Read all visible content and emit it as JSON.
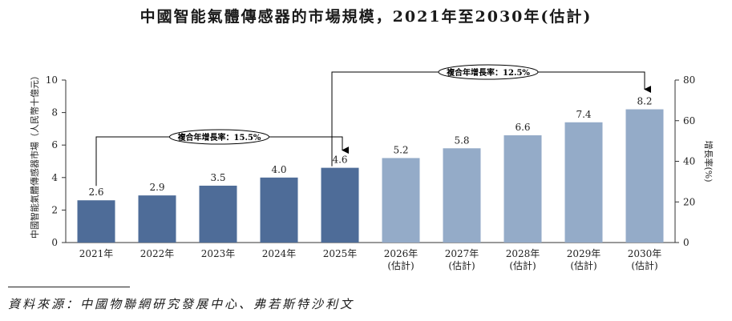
{
  "title": "中國智能氣體傳感器的市場規模，2021年至2030年(估計)",
  "source": "資料來源：中國物聯網研究發展中心、弗若斯特沙利文",
  "colors": {
    "actual": "#4e6c98",
    "forecast": "#94abc8",
    "axis": "#333333",
    "label": "#222222"
  },
  "chart_data": {
    "type": "bar",
    "categories": [
      [
        "2021年"
      ],
      [
        "2022年"
      ],
      [
        "2023年"
      ],
      [
        "2024年"
      ],
      [
        "2025年"
      ],
      [
        "2026年",
        "(估計)"
      ],
      [
        "2027年",
        "(估計)"
      ],
      [
        "2028年",
        "(估計)"
      ],
      [
        "2029年",
        "(估計)"
      ],
      [
        "2030年",
        "(估計)"
      ]
    ],
    "values": [
      2.6,
      2.9,
      3.5,
      4.0,
      4.6,
      5.2,
      5.8,
      6.6,
      7.4,
      8.2
    ],
    "forecast_from_index": 5,
    "ylabel": "中國智能氣體傳感器市場（人民幣十億元）",
    "ylim": [
      0,
      10
    ],
    "yticks": [
      0,
      2,
      4,
      6,
      8,
      10
    ],
    "y2label": "增長率(%)",
    "y2lim": [
      0,
      80
    ],
    "y2ticks": [
      0,
      20,
      40,
      60,
      80
    ],
    "grid": false,
    "annotations": [
      {
        "text": "複合年增長率：15.5%",
        "from_index": 0,
        "to_index": 4
      },
      {
        "text": "複合年增長率：12.5%",
        "from_index": 4,
        "to_index": 9
      }
    ]
  }
}
